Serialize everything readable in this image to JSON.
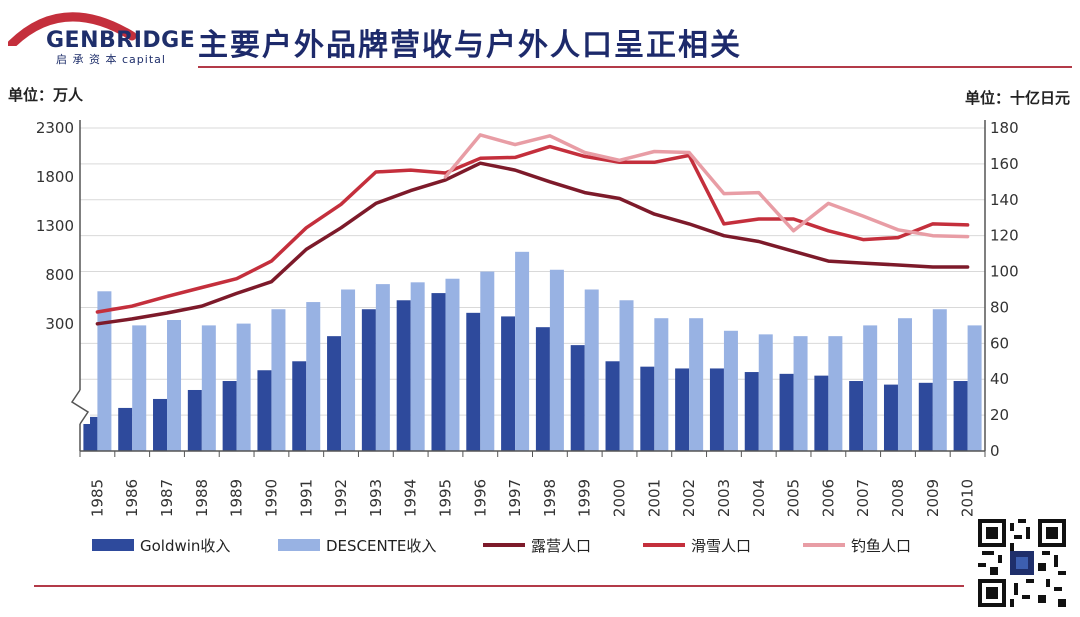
{
  "header": {
    "logo_name": "GENBRIDGE",
    "logo_sub": "启 承 资 本 capital",
    "title": "主要户外品牌营收与户外人口呈正相关"
  },
  "units": {
    "left": "单位：万人",
    "right": "单位：十亿日元"
  },
  "colors": {
    "goldwin": "#2e4a9c",
    "descente": "#98b2e3",
    "camping": "#7d1a2a",
    "ski": "#c42f3c",
    "fishing": "#e89da5",
    "accent": "#b33a48"
  },
  "chart_data": {
    "type": "bar",
    "categories": [
      "1985",
      "1986",
      "1987",
      "1988",
      "1989",
      "1990",
      "1991",
      "1992",
      "1993",
      "1994",
      "1995",
      "1996",
      "1997",
      "1998",
      "1999",
      "2000",
      "2001",
      "2002",
      "2003",
      "2004",
      "2005",
      "2006",
      "2007",
      "2008",
      "2009",
      "2010"
    ],
    "left_axis": {
      "ticks": [
        "2300",
        "1800",
        "1300",
        "800",
        "300"
      ],
      "ylim": [
        -1000,
        2300
      ]
    },
    "right_axis": {
      "ticks": [
        "180",
        "160",
        "140",
        "120",
        "100",
        "80",
        "60",
        "40",
        "20",
        "0"
      ],
      "ylim": [
        0,
        180
      ]
    },
    "bars": [
      {
        "name": "Goldwin收入",
        "axis": "right",
        "values": [
          19,
          24,
          29,
          34,
          39,
          45,
          50,
          64,
          79,
          84,
          88,
          77,
          75,
          69,
          59,
          50,
          47,
          46,
          46,
          44,
          43,
          42,
          39,
          37,
          38,
          39
        ]
      },
      {
        "name": "DESCENTE收入",
        "axis": "right",
        "values": [
          89,
          70,
          73,
          70,
          71,
          79,
          83,
          90,
          93,
          94,
          96,
          100,
          111,
          101,
          90,
          84,
          74,
          74,
          67,
          65,
          64,
          64,
          70,
          74,
          79,
          70
        ]
      }
    ],
    "lines": [
      {
        "name": "露营人口",
        "axis": "left",
        "x": [
          "1985",
          "1986",
          "1987",
          "1988",
          "1989",
          "1990",
          "1991",
          "1992",
          "1993",
          "1994",
          "1995",
          "1996",
          "1997",
          "1998",
          "1999",
          "2000",
          "2001",
          "2002",
          "2003",
          "2004",
          "2005",
          "2006",
          "2007",
          "2008",
          "2009",
          "2010"
        ],
        "values": [
          300,
          350,
          410,
          480,
          610,
          730,
          1060,
          1280,
          1530,
          1660,
          1770,
          1940,
          1870,
          1750,
          1640,
          1580,
          1420,
          1320,
          1200,
          1140,
          1040,
          940,
          920,
          900,
          880,
          880
        ]
      },
      {
        "name": "滑雪人口",
        "axis": "left",
        "x": [
          "1985",
          "1986",
          "1987",
          "1988",
          "1989",
          "1990",
          "1991",
          "1992",
          "1993",
          "1994",
          "1995",
          "1996",
          "1997",
          "1998",
          "1999",
          "2000",
          "2001",
          "2002",
          "2003",
          "2004",
          "2005",
          "2006",
          "2007",
          "2008",
          "2009",
          "2010"
        ],
        "values": [
          420,
          480,
          580,
          670,
          760,
          940,
          1280,
          1520,
          1850,
          1870,
          1840,
          1990,
          2000,
          2110,
          2010,
          1950,
          1950,
          2020,
          1320,
          1370,
          1370,
          1250,
          1160,
          1180,
          1320,
          1310
        ]
      },
      {
        "name": "钓鱼人口",
        "axis": "left",
        "x": [
          "1995",
          "1996",
          "1997",
          "1998",
          "1999",
          "2000",
          "2001",
          "2002",
          "2003",
          "2004",
          "2005",
          "2006",
          "2007",
          "2008",
          "2009",
          "2010"
        ],
        "values": [
          1800,
          2230,
          2130,
          2220,
          2050,
          1970,
          2060,
          2050,
          1630,
          1640,
          1250,
          1530,
          1400,
          1260,
          1200,
          1190
        ]
      }
    ]
  },
  "legend": [
    {
      "label": "Goldwin收入",
      "kind": "bar",
      "color_key": "goldwin"
    },
    {
      "label": "DESCENTE收入",
      "kind": "bar",
      "color_key": "descente"
    },
    {
      "label": "露营人口",
      "kind": "line",
      "color_key": "camping"
    },
    {
      "label": "滑雪人口",
      "kind": "line",
      "color_key": "ski"
    },
    {
      "label": "钓鱼人口",
      "kind": "line",
      "color_key": "fishing"
    }
  ]
}
